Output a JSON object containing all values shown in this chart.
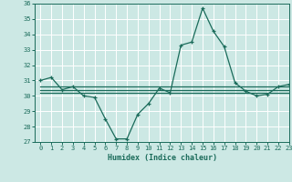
{
  "x": [
    0,
    1,
    2,
    3,
    4,
    5,
    6,
    7,
    8,
    9,
    10,
    11,
    12,
    13,
    14,
    15,
    16,
    17,
    18,
    19,
    20,
    21,
    22,
    23
  ],
  "y_main": [
    31.0,
    31.2,
    30.4,
    30.6,
    30.0,
    29.9,
    28.5,
    27.2,
    27.2,
    28.8,
    29.5,
    30.5,
    30.2,
    33.3,
    33.5,
    35.7,
    34.2,
    33.2,
    30.85,
    30.3,
    30.0,
    30.1,
    30.6,
    30.75
  ],
  "y_flat1": [
    30.2,
    30.2,
    30.2,
    30.2,
    30.2,
    30.2,
    30.2,
    30.2,
    30.2,
    30.2,
    30.2,
    30.2,
    30.2,
    30.2,
    30.2,
    30.2,
    30.2,
    30.2,
    30.2,
    30.2,
    30.2,
    30.2,
    30.2,
    30.2
  ],
  "y_flat2": [
    30.4,
    30.4,
    30.4,
    30.4,
    30.4,
    30.4,
    30.4,
    30.4,
    30.4,
    30.4,
    30.4,
    30.4,
    30.4,
    30.4,
    30.4,
    30.4,
    30.4,
    30.4,
    30.4,
    30.4,
    30.4,
    30.4,
    30.4,
    30.4
  ],
  "y_flat3": [
    30.6,
    30.6,
    30.6,
    30.6,
    30.6,
    30.6,
    30.6,
    30.6,
    30.6,
    30.6,
    30.6,
    30.6,
    30.6,
    30.6,
    30.6,
    30.6,
    30.6,
    30.6,
    30.6,
    30.6,
    30.6,
    30.6,
    30.6,
    30.6
  ],
  "line_color": "#1a6b5a",
  "bg_color": "#cce8e4",
  "grid_color": "#ffffff",
  "xlabel": "Humidex (Indice chaleur)",
  "ylim": [
    27,
    36
  ],
  "xlim": [
    -0.5,
    23
  ],
  "yticks": [
    27,
    28,
    29,
    30,
    31,
    32,
    33,
    34,
    35,
    36
  ],
  "xticks": [
    0,
    1,
    2,
    3,
    4,
    5,
    6,
    7,
    8,
    9,
    10,
    11,
    12,
    13,
    14,
    15,
    16,
    17,
    18,
    19,
    20,
    21,
    22,
    23
  ],
  "tick_fontsize": 5.0,
  "xlabel_fontsize": 6.0
}
